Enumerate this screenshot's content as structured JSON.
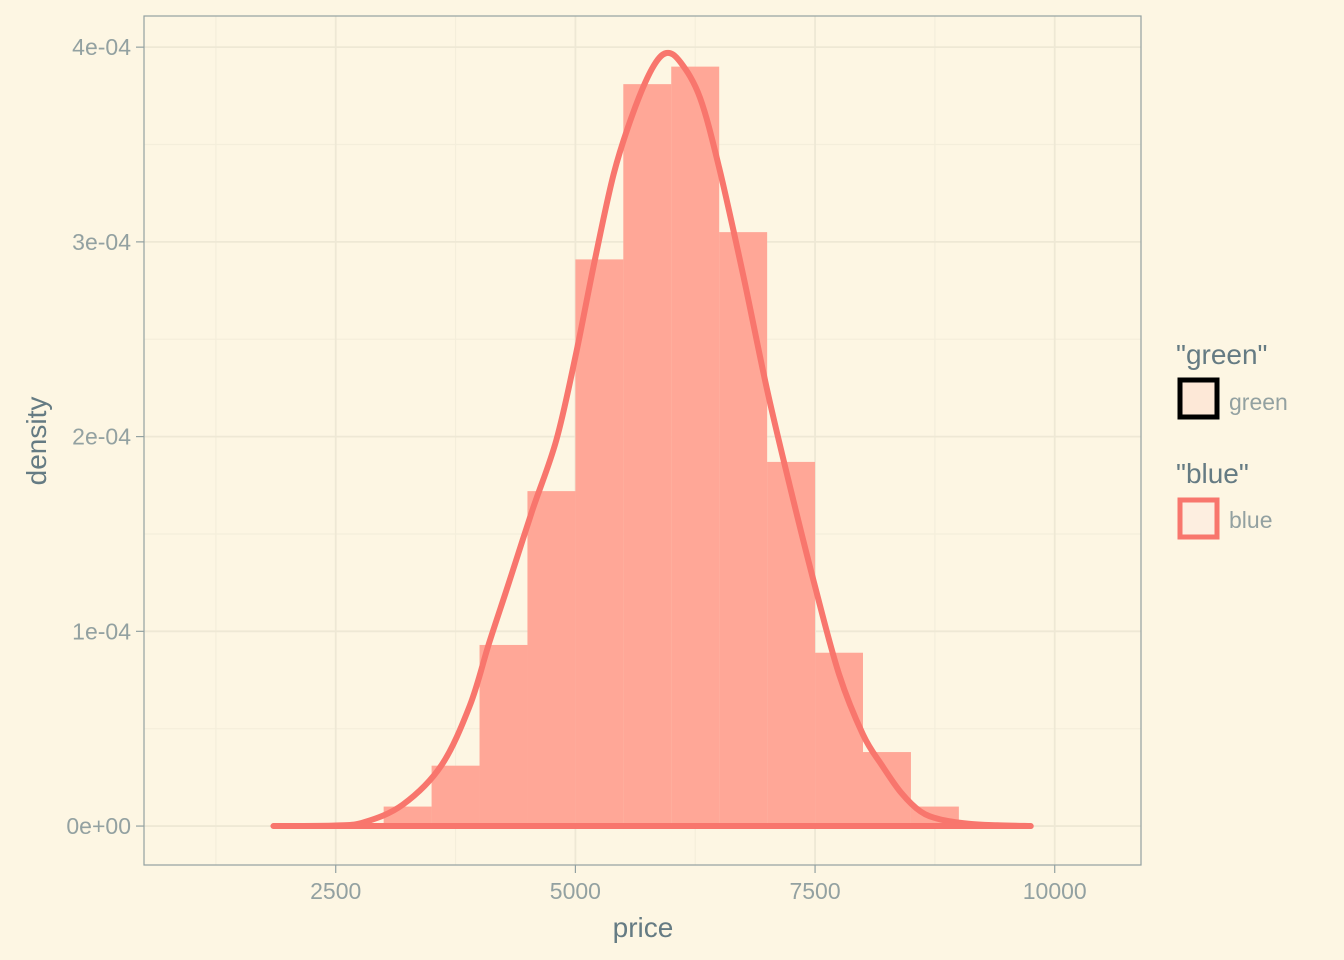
{
  "chart_data": {
    "type": "histogram",
    "title": "",
    "xlabel": "price",
    "ylabel": "density",
    "xlim": [
      500,
      10900
    ],
    "ylim": [
      -2e-05,
      0.000416
    ],
    "x_ticks": [
      2500,
      5000,
      7500,
      10000
    ],
    "x_tick_labels": [
      "2500",
      "5000",
      "7500",
      "10000"
    ],
    "y_ticks": [
      0,
      0.0001,
      0.0002,
      0.0003,
      0.0004
    ],
    "y_tick_labels": [
      "0e+00",
      "1e-04",
      "2e-04",
      "3e-04",
      "4e-04"
    ],
    "grid": true,
    "legend_position": "right",
    "series": [
      {
        "name": "green",
        "geom": "histogram",
        "bin_width": 500,
        "bin_starts": [
          3000,
          3500,
          4000,
          4500,
          5000,
          5500,
          6000,
          6500,
          7000,
          7500,
          8000,
          8500
        ],
        "values": [
          1e-05,
          3.1e-05,
          9.3e-05,
          0.000172,
          0.000291,
          0.000381,
          0.00039,
          0.000305,
          0.000187,
          8.9e-05,
          3.8e-05,
          1e-05
        ],
        "fill": "#FDE8D7",
        "stroke": "#000000"
      },
      {
        "name": "blue",
        "geom": "histogram+density",
        "bin_width": 500,
        "bin_starts": [
          3000,
          3500,
          4000,
          4500,
          5000,
          5500,
          6000,
          6500,
          7000,
          7500,
          8000,
          8500
        ],
        "values": [
          1e-05,
          3.1e-05,
          9.3e-05,
          0.000172,
          0.000291,
          0.000381,
          0.00039,
          0.000305,
          0.000187,
          8.9e-05,
          3.8e-05,
          1e-05
        ],
        "fill": "#FF9182",
        "fill_opacity": 0.75,
        "stroke": "#F8766D",
        "density": {
          "x": [
            1850,
            2500,
            2800,
            3200,
            3600,
            3900,
            4100,
            4300,
            4550,
            4800,
            5000,
            5200,
            5400,
            5600,
            5800,
            5950,
            6100,
            6300,
            6500,
            6750,
            7000,
            7250,
            7500,
            7750,
            8000,
            8200,
            8400,
            8600,
            8800,
            9100,
            9400,
            9750
          ],
          "y": [
            0,
            3e-07,
            2e-06,
            1.1e-05,
            3.1e-05,
            6.2e-05,
            9.4e-05,
            0.000124,
            0.000162,
            0.000198,
            0.000241,
            0.00029,
            0.000335,
            0.000366,
            0.000389,
            0.000397,
            0.000392,
            0.000374,
            0.000338,
            0.000283,
            0.000224,
            0.000172,
            0.000123,
            7.8e-05,
            4.7e-05,
            3.1e-05,
            1.7e-05,
            7.5e-06,
            3.5e-06,
            1.2e-06,
            4e-07,
            0
          ],
          "color": "#F8766D"
        }
      }
    ]
  },
  "legend": {
    "groups": [
      {
        "title": "\"green\"",
        "label": "green",
        "key_fill": "#FDE8D7",
        "key_stroke": "#000000"
      },
      {
        "title": "\"blue\"",
        "label": "blue",
        "key_fill": "#FDEEE0",
        "key_stroke": "#F8766D"
      }
    ]
  },
  "colors": {
    "background": "#FDF6E3",
    "panel_border": "#93A1A1",
    "grid_major": "#EEE8D5",
    "grid_minor": "#F4EEDB",
    "axis_text": "#93A1A1",
    "axis_title": "#657B83"
  }
}
